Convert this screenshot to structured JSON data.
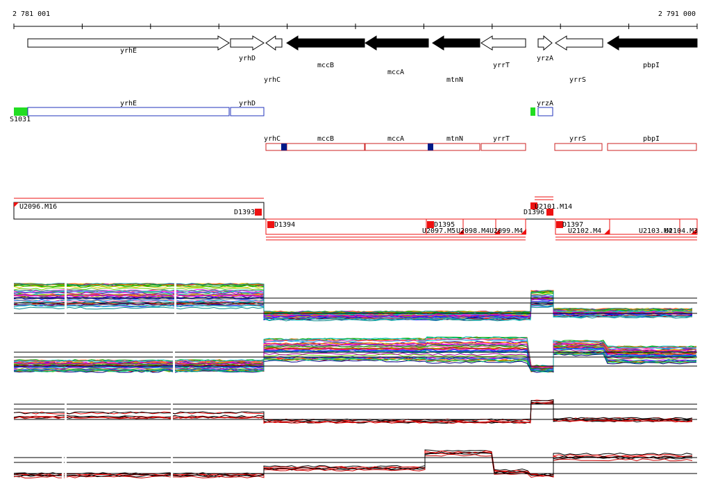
{
  "ruler": {
    "start": "2 781 001",
    "end": "2 791 000"
  },
  "genes": [
    {
      "label": "yrhE"
    },
    {
      "label": "yrhD"
    },
    {
      "label": "yrhC"
    },
    {
      "label": "mccB"
    },
    {
      "label": "mccA"
    },
    {
      "label": "mtnN"
    },
    {
      "label": "yrrT"
    },
    {
      "label": "yrzA"
    },
    {
      "label": "yrrS"
    },
    {
      "label": "pbpI"
    }
  ],
  "regions": [
    {
      "label": "S1031"
    },
    {
      "label": "yrhE"
    },
    {
      "label": "yrhD"
    },
    {
      "label": "yrzA"
    }
  ],
  "segments": [
    {
      "label": "yrhC"
    },
    {
      "label": "mccB"
    },
    {
      "label": "mccA"
    },
    {
      "label": "mtnN"
    },
    {
      "label": "yrrT"
    },
    {
      "label": "yrrS"
    },
    {
      "label": "pbpI"
    }
  ],
  "units": [
    {
      "label": "U2096.M16"
    },
    {
      "label": "D1393"
    },
    {
      "label": "D1394"
    },
    {
      "label": "D1395"
    },
    {
      "label": "U2097.M5"
    },
    {
      "label": "U2098.M4"
    },
    {
      "label": "U2099.M4"
    },
    {
      "label": "D1396"
    },
    {
      "label": "U2101.M14"
    },
    {
      "label": "D1397"
    },
    {
      "label": "U2102.M4"
    },
    {
      "label": "U2103.M4"
    },
    {
      "label": "U2104.M3"
    }
  ]
}
